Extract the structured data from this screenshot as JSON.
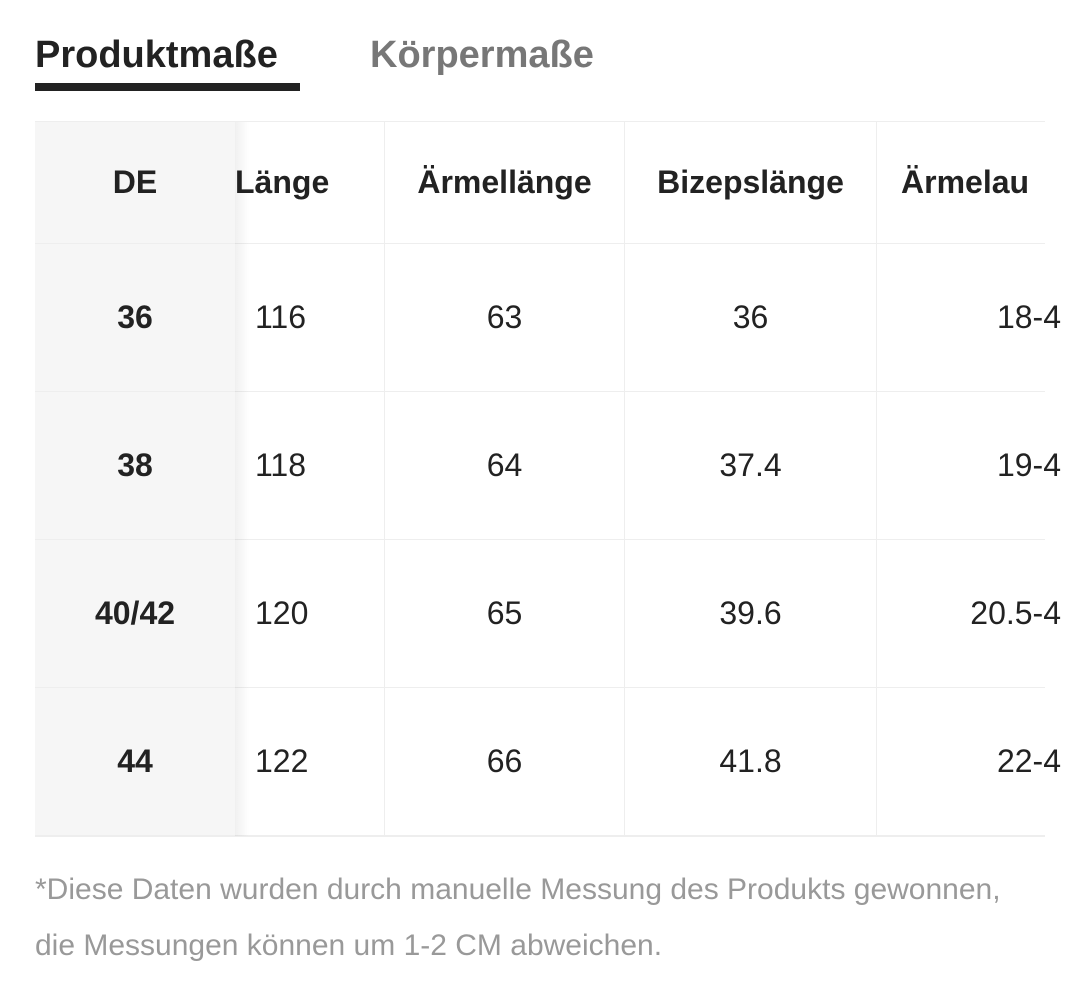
{
  "tabs": [
    "Produktmaße",
    "Körpermaße"
  ],
  "table": {
    "columns": [
      "DE",
      "Länge",
      "Ärmellänge",
      "Bizepslänge",
      "Ärmelau"
    ],
    "rows": [
      [
        "36",
        "116",
        "63",
        "36",
        "18-4"
      ],
      [
        "38",
        "118",
        "64",
        "37.4",
        "19-4"
      ],
      [
        "40/42",
        "120",
        "65",
        "39.6",
        "20.5-4"
      ],
      [
        "44",
        "122",
        "66",
        "41.8",
        "22-4"
      ]
    ]
  },
  "note": "*Diese Daten wurden durch manuelle Messung des Produkts gewonnen, die Messungen können um 1-2 CM abweichen."
}
